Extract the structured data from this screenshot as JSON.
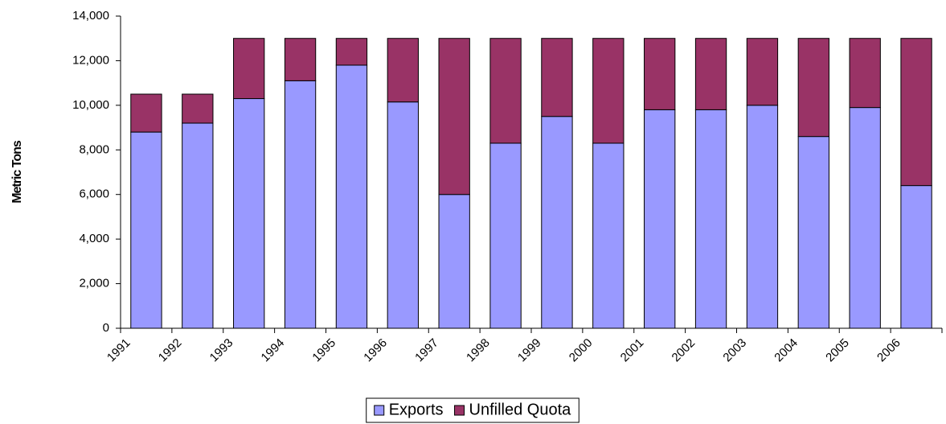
{
  "chart_data": {
    "type": "stacked_bar",
    "y_label": "Metric Tons",
    "categories": [
      "1991",
      "1992",
      "1993",
      "1994",
      "1995",
      "1996",
      "1997",
      "1998",
      "1999",
      "2000",
      "2001",
      "2002",
      "2003",
      "2004",
      "2005",
      "2006"
    ],
    "series": [
      {
        "name": "Exports",
        "color": "#9999ff",
        "values": [
          8800,
          9200,
          10300,
          11100,
          11800,
          10150,
          6000,
          8300,
          9500,
          8300,
          9800,
          9800,
          10000,
          8600,
          9900,
          6400
        ]
      },
      {
        "name": "Unfilled Quota",
        "color": "#993366",
        "values": [
          1700,
          1300,
          2700,
          1900,
          1200,
          2850,
          7000,
          4700,
          3500,
          4700,
          3200,
          3200,
          3000,
          4400,
          3100,
          6600
        ]
      }
    ],
    "ylim": [
      0,
      14000
    ],
    "yticks": [
      0,
      {
        "value": 2000,
        "label": "2,000"
      },
      {
        "value": 4000,
        "label": "4,000"
      },
      {
        "value": 6000,
        "label": "6,000"
      },
      {
        "value": 8000,
        "label": "8,000"
      },
      {
        "value": 10000,
        "label": "10,000"
      },
      {
        "value": 12000,
        "label": "12,000"
      },
      {
        "value": 14000,
        "label": "14,000"
      }
    ],
    "legend": "bottom"
  }
}
